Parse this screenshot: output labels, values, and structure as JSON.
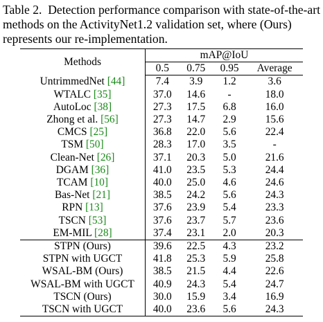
{
  "caption": {
    "label": "Table 2.",
    "text": "Detection performance comparison with state-of-the-art methods on the ActivityNet1.2 validation set, where (Ours) represents our re-implementation."
  },
  "table": {
    "header": {
      "methods": "Methods",
      "group": "mAP@IoU",
      "columns": [
        "0.5",
        "0.75",
        "0.95",
        "Average"
      ]
    },
    "rows": [
      {
        "method": "UntrimmedNet",
        "cite": "[44]",
        "values": [
          "7.4",
          "3.9",
          "1.2",
          "3.6"
        ],
        "bold": [
          false,
          false,
          false,
          false
        ]
      },
      {
        "method": "WTALC",
        "cite": "[35]",
        "values": [
          "37.0",
          "14.6",
          "-",
          "18.0"
        ],
        "bold": [
          false,
          false,
          false,
          false
        ]
      },
      {
        "method": "AutoLoc",
        "cite": "[38]",
        "values": [
          "27.3",
          "17.5",
          "6.8",
          "16.0"
        ],
        "bold": [
          false,
          false,
          false,
          false
        ]
      },
      {
        "method": "Zhong et al.",
        "cite": "[56]",
        "values": [
          "27.3",
          "14.7",
          "2.9",
          "15.6"
        ],
        "bold": [
          false,
          false,
          false,
          false
        ]
      },
      {
        "method": "CMCS",
        "cite": "[25]",
        "values": [
          "36.8",
          "22.0",
          "5.6",
          "22.4"
        ],
        "bold": [
          false,
          false,
          false,
          false
        ]
      },
      {
        "method": "TSM",
        "cite": "[50]",
        "values": [
          "28.3",
          "17.0",
          "3.5",
          "-"
        ],
        "bold": [
          false,
          false,
          false,
          false
        ]
      },
      {
        "method": "Clean-Net",
        "cite": "[26]",
        "values": [
          "37.1",
          "20.3",
          "5.0",
          "21.6"
        ],
        "bold": [
          false,
          false,
          false,
          false
        ]
      },
      {
        "method": "DGAM",
        "cite": "[36]",
        "values": [
          "41.0",
          "23.5",
          "5.3",
          "24.4"
        ],
        "bold": [
          false,
          false,
          false,
          false
        ]
      },
      {
        "method": "TCAM",
        "cite": "[10]",
        "values": [
          "40.0",
          "25.0",
          "4.6",
          "24.6"
        ],
        "bold": [
          false,
          false,
          false,
          false
        ]
      },
      {
        "method": "Bas-Net",
        "cite": "[21]",
        "values": [
          "38.5",
          "24.2",
          "5.6",
          "24.3"
        ],
        "bold": [
          false,
          false,
          false,
          false
        ]
      },
      {
        "method": "RPN",
        "cite": "[13]",
        "values": [
          "37.6",
          "23.9",
          "5.4",
          "23.3"
        ],
        "bold": [
          false,
          false,
          false,
          false
        ]
      },
      {
        "method": "TSCN",
        "cite": "[53]",
        "values": [
          "37.6",
          "23.7",
          "5.7",
          "23.6"
        ],
        "bold": [
          false,
          false,
          false,
          false
        ]
      },
      {
        "method": "EM-MIL",
        "cite": "[28]",
        "values": [
          "37.4",
          "23.1",
          "2.0",
          "20.3"
        ],
        "bold": [
          false,
          false,
          false,
          false
        ]
      }
    ],
    "ours_rows": [
      {
        "method": "STPN (Ours)",
        "values": [
          "39.6",
          "22.5",
          "4.3",
          "23.2"
        ],
        "bold": [
          false,
          false,
          false,
          false
        ]
      },
      {
        "method": "STPN with UGCT",
        "values": [
          "41.8",
          "25.3",
          "5.9",
          "25.8"
        ],
        "bold": [
          true,
          true,
          true,
          true
        ]
      },
      {
        "method": "WSAL-BM (Ours)",
        "values": [
          "38.5",
          "21.5",
          "4.4",
          "22.6"
        ],
        "bold": [
          false,
          false,
          false,
          false
        ]
      },
      {
        "method": "WSAL-BM with UGCT",
        "values": [
          "40.9",
          "24.3",
          "5.4",
          "24.7"
        ],
        "bold": [
          true,
          true,
          true,
          true
        ]
      },
      {
        "method": "TSCN (Ours)",
        "values": [
          "30.0",
          "15.9",
          "3.4",
          "16.9"
        ],
        "bold": [
          false,
          false,
          false,
          false
        ]
      },
      {
        "method": "TSCN with UGCT",
        "values": [
          "40.0",
          "23.6",
          "5.6",
          "24.3"
        ],
        "bold": [
          true,
          true,
          true,
          true
        ]
      }
    ]
  }
}
